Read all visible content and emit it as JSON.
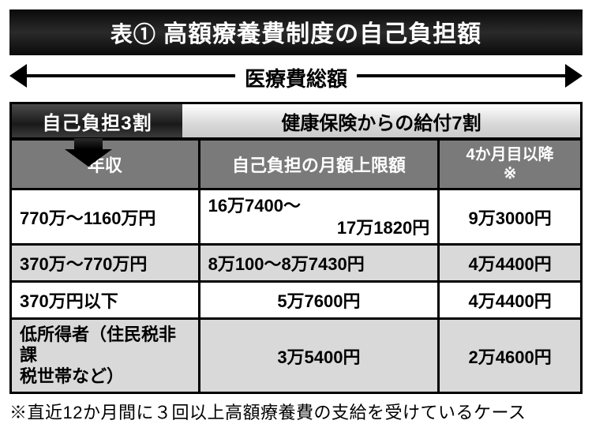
{
  "title": {
    "prefix": "表①",
    "text": "高額療養費制度の自己負担額"
  },
  "axis_label": "医療費総額",
  "split": {
    "left_label": "自己負担3割",
    "right_label": "健康保険からの給付7割",
    "left_pct": 30
  },
  "table": {
    "columns": [
      "年収",
      "自己負担の月額上限額",
      "4か月目以降\n※"
    ],
    "col_widths_pct": [
      33,
      42,
      25
    ],
    "rows": [
      {
        "income": "770万～1160万円",
        "limit": "16万7400～\n17万1820円",
        "after4": "9万3000円",
        "shaded": false,
        "limit_align": "range"
      },
      {
        "income": "370万～770万円",
        "limit": "8万100～8万7430円",
        "after4": "4万4400円",
        "shaded": true,
        "limit_align": "left"
      },
      {
        "income": "370万円以下",
        "limit": "5万7600円",
        "after4": "4万4400円",
        "shaded": false,
        "limit_align": "center"
      },
      {
        "income": "低所得者（住民税非課\n税世帯など）",
        "limit": "3万5400円",
        "after4": "2万4600円",
        "shaded": true,
        "limit_align": "center",
        "income_small": true
      }
    ]
  },
  "footnote": "※直近12か月間に３回以上高額療養費の支給を受けているケース",
  "colors": {
    "header_bg": "#7a7a7a",
    "shade_bg": "#d9d9d9",
    "title_bg": "#0a0a0a",
    "border": "#000000"
  }
}
